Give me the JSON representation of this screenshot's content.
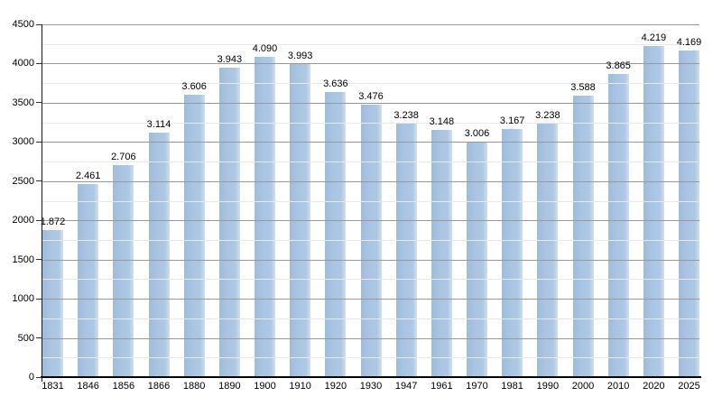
{
  "chart_data": {
    "type": "bar",
    "title": "",
    "xlabel": "",
    "ylabel": "",
    "categories": [
      "1831",
      "1846",
      "1856",
      "1866",
      "1880",
      "1890",
      "1900",
      "1910",
      "1920",
      "1930",
      "1947",
      "1961",
      "1970",
      "1981",
      "1990",
      "2000",
      "2010",
      "2020",
      "2025"
    ],
    "values": [
      1872,
      2461,
      2706,
      3114,
      3606,
      3943,
      4090,
      3993,
      3636,
      3476,
      3238,
      3148,
      3006,
      3167,
      3238,
      3588,
      3865,
      4219,
      4169
    ],
    "bar_labels": [
      "1.872",
      "2.461",
      "2.706",
      "3.114",
      "3.606",
      "3.943",
      "4.090",
      "3.993",
      "3.636",
      "3.476",
      "3.238",
      "3.148",
      "3.006",
      "3.167",
      "3.238",
      "3.588",
      "3.865",
      "4.219",
      "4.169"
    ],
    "ylim": [
      0,
      4500
    ],
    "y_tick_labels": [
      "0",
      "500",
      "1000",
      "1500",
      "2000",
      "2500",
      "3000",
      "3500",
      "4000",
      "4500"
    ],
    "y_tick_values": [
      0,
      500,
      1000,
      1500,
      2000,
      2500,
      3000,
      3500,
      4000,
      4500
    ],
    "y_minor_step": 250,
    "grid": "major and minor horizontal gridlines, drawn over bars",
    "legend": "none",
    "colors": {
      "bar_fill": "#a9c5e2",
      "bar_fill_edge_light": "#cfdff0",
      "bar_fill_edge_dark": "#9dbcdc",
      "major_grid": "#999999",
      "minor_grid": "#e9e9e9",
      "axis": "#000000",
      "text": "#000000",
      "background": "#ffffff"
    }
  }
}
